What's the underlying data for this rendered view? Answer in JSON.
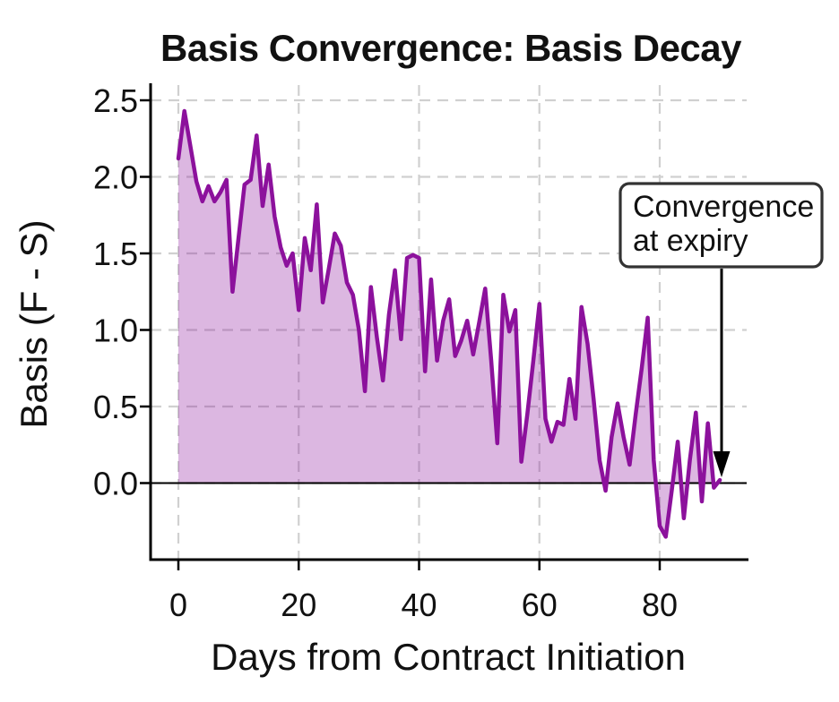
{
  "chart_data": {
    "type": "line",
    "title": "Basis Convergence: Basis Decay",
    "xlabel": "Days from Contract Initiation",
    "ylabel": "Basis (F - S)",
    "xlim": [
      -4.6,
      94.4
    ],
    "ylim": [
      -0.5,
      2.6
    ],
    "xticks": [
      0,
      20,
      40,
      60,
      80
    ],
    "yticks": [
      0.0,
      0.5,
      1.0,
      1.5,
      2.0,
      2.5
    ],
    "ytick_labels": [
      "0.0",
      "0.5",
      "1.0",
      "1.5",
      "2.0",
      "2.5"
    ],
    "grid": true,
    "grid_style": "dashed",
    "zero_line": true,
    "legend": "none",
    "series": [
      {
        "name": "basis",
        "x": [
          0,
          1,
          2,
          3,
          4,
          5,
          6,
          7,
          8,
          9,
          10,
          11,
          12,
          13,
          14,
          15,
          16,
          17,
          18,
          19,
          20,
          21,
          22,
          23,
          24,
          25,
          26,
          27,
          28,
          29,
          30,
          31,
          32,
          33,
          34,
          35,
          36,
          37,
          38,
          39,
          40,
          41,
          42,
          43,
          44,
          45,
          46,
          47,
          48,
          49,
          50,
          51,
          52,
          53,
          54,
          55,
          56,
          57,
          58,
          59,
          60,
          61,
          62,
          63,
          64,
          65,
          66,
          67,
          68,
          69,
          70,
          71,
          72,
          73,
          74,
          75,
          76,
          77,
          78,
          79,
          80,
          81,
          82,
          83,
          84,
          85,
          86,
          87,
          88,
          89,
          90
        ],
        "y": [
          2.12,
          2.43,
          2.2,
          1.97,
          1.84,
          1.94,
          1.84,
          1.9,
          1.98,
          1.25,
          1.6,
          1.95,
          1.98,
          2.27,
          1.81,
          2.08,
          1.74,
          1.54,
          1.42,
          1.5,
          1.13,
          1.6,
          1.39,
          1.82,
          1.18,
          1.4,
          1.63,
          1.55,
          1.31,
          1.23,
          1.0,
          0.6,
          1.28,
          0.95,
          0.67,
          1.1,
          1.39,
          0.94,
          1.47,
          1.49,
          1.47,
          0.73,
          1.33,
          0.8,
          1.06,
          1.2,
          0.83,
          0.93,
          1.06,
          0.84,
          1.05,
          1.27,
          0.8,
          0.26,
          1.23,
          0.99,
          1.13,
          0.14,
          0.45,
          0.8,
          1.17,
          0.42,
          0.27,
          0.4,
          0.38,
          0.68,
          0.42,
          1.15,
          0.91,
          0.55,
          0.15,
          -0.05,
          0.3,
          0.52,
          0.3,
          0.12,
          0.45,
          0.75,
          1.08,
          0.15,
          -0.28,
          -0.35,
          -0.05,
          0.27,
          -0.23,
          0.15,
          0.46,
          -0.12,
          0.39,
          -0.03,
          0.02
        ]
      }
    ],
    "annotation": {
      "line1": "Convergence",
      "line2": "at expiry",
      "arrow_target": {
        "x": 90,
        "y": 0.1
      }
    },
    "colors": {
      "line": "#8C119C",
      "fill": "rgba(140,17,156,0.30)",
      "grid": "#d0d0d0",
      "axis": "#000000",
      "zero_line": "#000000",
      "text": "#111111",
      "annotation_border": "#333333",
      "annotation_bg": "#ffffff",
      "arrow": "#000000",
      "background": "#ffffff"
    }
  }
}
